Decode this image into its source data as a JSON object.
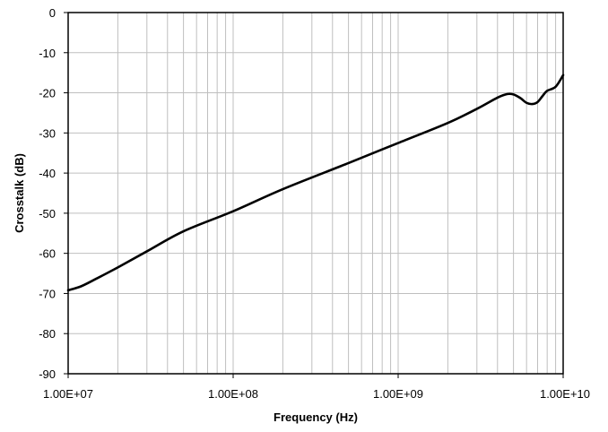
{
  "chart_data": {
    "type": "line",
    "title": "",
    "xlabel": "Frequency (Hz)",
    "ylabel": "Crosstalk (dB)",
    "x_scale": "log",
    "x_ticks": [
      10000000,
      100000000,
      1000000000,
      10000000000
    ],
    "x_tick_labels": [
      "1.00E+07",
      "1.00E+08",
      "1.00E+09",
      "1.00E+10"
    ],
    "y_ticks": [
      0,
      -10,
      -20,
      -30,
      -40,
      -50,
      -60,
      -70,
      -80,
      -90
    ],
    "xlim": [
      10000000,
      10000000000
    ],
    "ylim": [
      -90,
      0
    ],
    "grid": true,
    "legend": "none",
    "colors": {
      "line": "#000000",
      "grid": "#bfbfbf",
      "axis": "#000000"
    },
    "series": [
      {
        "x": [
          10000000,
          12000000,
          15000000,
          20000000,
          30000000,
          50000000,
          100000000,
          200000000,
          500000000,
          1000000000,
          2000000000,
          3000000000,
          4000000000,
          4600000000,
          5000000000,
          5500000000,
          6000000000,
          6500000000,
          7000000000,
          7500000000,
          8000000000,
          9000000000,
          10000000000
        ],
        "y": [
          -69.2,
          -68.2,
          -66.2,
          -63.5,
          -59.5,
          -54.5,
          -49.5,
          -44,
          -37.5,
          -32.5,
          -27.5,
          -24,
          -21.2,
          -20.3,
          -20.4,
          -21.3,
          -22.5,
          -22.8,
          -22.3,
          -20.8,
          -19.5,
          -18.5,
          -15.6
        ]
      }
    ]
  }
}
